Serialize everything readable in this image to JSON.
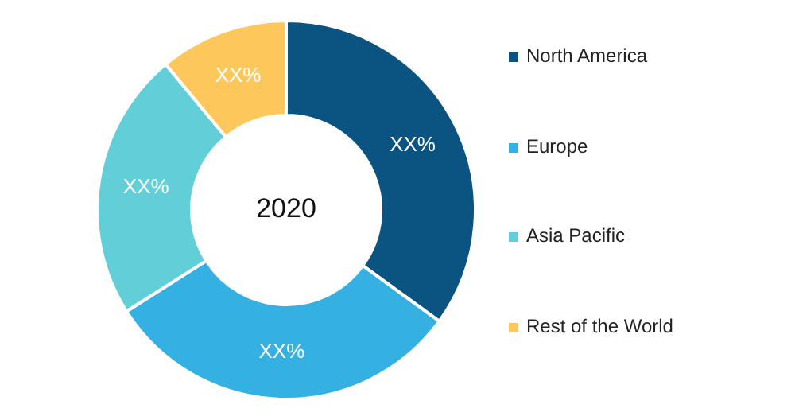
{
  "chart_data": {
    "type": "donut",
    "categories": [
      "North America",
      "Europe",
      "Asia Pacific",
      "Rest of the World"
    ],
    "values": [
      35,
      31,
      23,
      11
    ],
    "colors": [
      "#0b5380",
      "#35b0e2",
      "#62cfd8",
      "#fec75c"
    ],
    "value_labels": [
      "XX%",
      "XX%",
      "XX%",
      "XX%"
    ],
    "annotations": [
      "2020"
    ],
    "legend": "right"
  }
}
